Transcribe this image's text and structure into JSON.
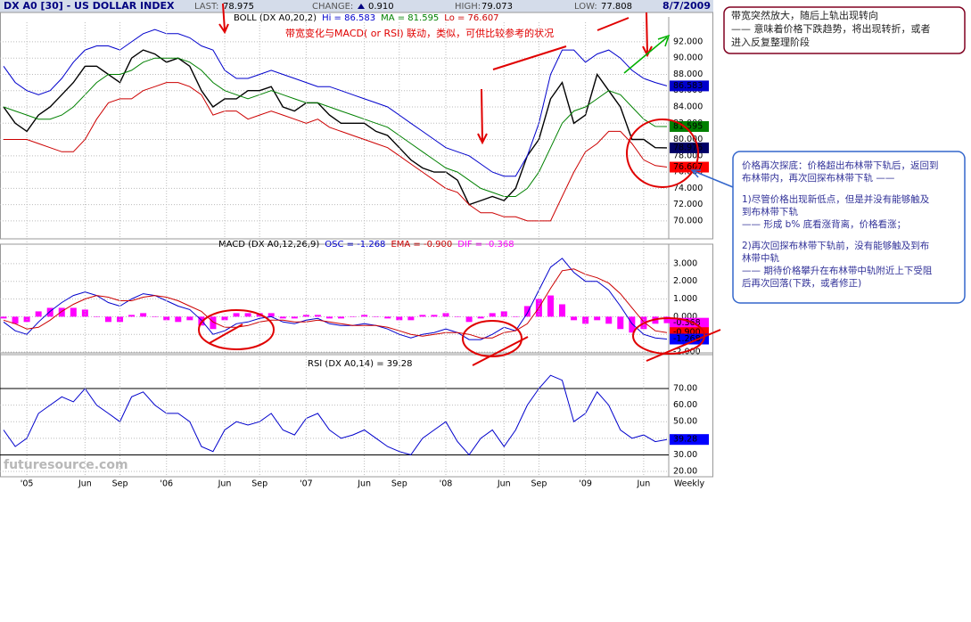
{
  "header": {
    "title": "DX A0 [30] - US DOLLAR INDEX",
    "last_label": "LAST:",
    "last": "78.975",
    "change_label": "CHANGE:",
    "change": "0.910",
    "high_label": "HIGH:",
    "high": "79.073",
    "low_label": "LOW:",
    "low": "77.808",
    "date": "8/7/2009"
  },
  "chart_data": [
    {
      "type": "line",
      "subtitle": [
        {
          "text": "BOLL (DX A0,20,2)",
          "color": "#000000"
        },
        {
          "text": "Hi = 86.583",
          "color": "#0000cc"
        },
        {
          "text": "MA = 81.595",
          "color": "#008000"
        },
        {
          "text": "Lo = 76.607",
          "color": "#cc0000"
        }
      ],
      "ylim": [
        67.8,
        94.4
      ],
      "grid": true,
      "yticks": [
        {
          "value": 70,
          "label": "70.000"
        },
        {
          "value": 72,
          "label": "72.000"
        },
        {
          "value": 74,
          "label": "74.000"
        },
        {
          "value": 76,
          "label": "76.000"
        },
        {
          "value": 78,
          "label": "78.000"
        },
        {
          "value": 80,
          "label": "80.000"
        },
        {
          "value": 82,
          "label": "82.000"
        },
        {
          "value": 84,
          "label": "84.000"
        },
        {
          "value": 86,
          "label": "86.000"
        },
        {
          "value": 88,
          "label": "88.000"
        },
        {
          "value": 90,
          "label": "90.000"
        },
        {
          "value": 92,
          "label": "92.000"
        }
      ],
      "series": [
        {
          "color": "#000000",
          "values": [
            84,
            82,
            81,
            83,
            84,
            85.5,
            87,
            89,
            89,
            88,
            87,
            90,
            91,
            90.5,
            89.5,
            90,
            89,
            86,
            84,
            85,
            85,
            86,
            86,
            86.5,
            84,
            83.5,
            84.5,
            84.5,
            83,
            82,
            82,
            82,
            81,
            80.5,
            79,
            77.5,
            76.5,
            76,
            76,
            75,
            72,
            72.5,
            73,
            72.5,
            74,
            78,
            80,
            85,
            87,
            82,
            83,
            88,
            86,
            84,
            80,
            80,
            79,
            78.975
          ]
        },
        {
          "color": "#0000cc",
          "values": [
            89,
            87,
            86,
            85.5,
            86,
            87.5,
            89.5,
            91,
            91.5,
            91.5,
            91,
            92,
            93,
            93.5,
            93,
            93,
            92.5,
            91.5,
            91,
            88.5,
            87.5,
            87.5,
            88,
            88.5,
            88,
            87.5,
            87,
            86.5,
            86.5,
            86,
            85.5,
            85,
            84.5,
            84,
            83,
            82,
            81,
            80,
            79,
            78.5,
            78,
            77,
            76,
            75.5,
            75.5,
            78,
            82,
            88,
            91,
            91,
            89.5,
            90.5,
            91,
            90,
            88.5,
            87.5,
            87,
            86.583
          ]
        },
        {
          "color": "#008000",
          "values": [
            84,
            83.5,
            83,
            82.5,
            82.5,
            83,
            84,
            85.5,
            87,
            88,
            88,
            88.5,
            89.5,
            90,
            90,
            90,
            89.5,
            88.5,
            87,
            86,
            85.5,
            85,
            85.5,
            86,
            85.5,
            85,
            84.5,
            84.5,
            84,
            83.5,
            83,
            82.5,
            82,
            81.5,
            80.5,
            79.5,
            78.5,
            77.5,
            76.5,
            76,
            75,
            74,
            73.5,
            73,
            73,
            74,
            76,
            79,
            82,
            83.5,
            84,
            85,
            86,
            85.5,
            84,
            82.5,
            81.6,
            81.595
          ]
        },
        {
          "color": "#cc0000",
          "values": [
            80,
            80,
            80,
            79.5,
            79,
            78.5,
            78.5,
            80,
            82.5,
            84.5,
            85,
            85,
            86,
            86.5,
            87,
            87,
            86.5,
            85.5,
            83,
            83.5,
            83.5,
            82.5,
            83,
            83.5,
            83,
            82.5,
            82,
            82.5,
            81.5,
            81,
            80.5,
            80,
            79.5,
            79,
            78,
            77,
            76,
            75,
            74,
            73.5,
            72,
            71,
            71,
            70.5,
            70.5,
            70,
            70,
            70,
            73,
            76,
            78.5,
            79.5,
            81,
            81,
            79.5,
            77.5,
            76.8,
            76.607
          ]
        }
      ],
      "tags": [
        {
          "value": 86.583,
          "color": "#0000cc"
        },
        {
          "value": 81.595,
          "color": "#008000"
        },
        {
          "value": 78.975,
          "color": "#000066"
        },
        {
          "value": 76.607,
          "color": "#ff0000"
        }
      ]
    },
    {
      "type": "line",
      "subtitle": [
        {
          "text": "MACD (DX A0,12,26,9)",
          "color": "#000000"
        },
        {
          "text": "OSC = -1.268",
          "color": "#0000cc"
        },
        {
          "text": "EMA = -0.900",
          "color": "#cc0000"
        },
        {
          "text": "DIF = -0.368",
          "color": "#ff00ff"
        }
      ],
      "ylim": [
        -2.15,
        3.8
      ],
      "grid": true,
      "yticks": [
        {
          "value": -2,
          "label": "-2.000"
        },
        {
          "value": -1,
          "label": "-1.000"
        },
        {
          "value": 0,
          "label": "0.000"
        },
        {
          "value": 1,
          "label": "1.000"
        },
        {
          "value": 2,
          "label": "2.000"
        },
        {
          "value": 3,
          "label": "3.000"
        }
      ],
      "series": [
        {
          "color": "#ff00ff",
          "as": "bars",
          "values": [
            -0.1,
            -0.4,
            -0.3,
            0.3,
            0.5,
            0.5,
            0.5,
            0.4,
            0,
            -0.3,
            -0.3,
            0.1,
            0.2,
            0,
            -0.2,
            -0.3,
            -0.2,
            -0.5,
            -0.7,
            -0.2,
            0.2,
            0.2,
            0.2,
            0.2,
            -0.1,
            -0.1,
            0.1,
            0.1,
            -0.1,
            -0.1,
            0,
            0.1,
            0,
            -0.1,
            -0.2,
            -0.2,
            0.1,
            0.1,
            0.2,
            0,
            -0.3,
            -0.1,
            0.2,
            0.3,
            0,
            0.6,
            1,
            1.2,
            0.7,
            -0.2,
            -0.4,
            -0.2,
            -0.4,
            -0.7,
            -0.9,
            -0.7,
            -0.4,
            -0.368
          ]
        },
        {
          "color": "#0000cc",
          "values": [
            -0.3,
            -0.8,
            -1,
            -0.3,
            0.3,
            0.8,
            1.2,
            1.4,
            1.2,
            0.8,
            0.6,
            1,
            1.3,
            1.2,
            0.9,
            0.6,
            0.4,
            -0.2,
            -1,
            -0.8,
            -0.4,
            -0.3,
            -0.1,
            0,
            -0.3,
            -0.4,
            -0.2,
            -0.1,
            -0.4,
            -0.5,
            -0.5,
            -0.4,
            -0.5,
            -0.7,
            -1,
            -1.2,
            -1,
            -0.9,
            -0.7,
            -0.9,
            -1.3,
            -1.3,
            -1,
            -0.6,
            -0.8,
            0.2,
            1.5,
            2.8,
            3.3,
            2.5,
            2,
            2,
            1.5,
            0.6,
            -0.4,
            -1,
            -1.2,
            -1.268
          ]
        },
        {
          "color": "#cc0000",
          "values": [
            -0.2,
            -0.4,
            -0.7,
            -0.6,
            -0.2,
            0.3,
            0.7,
            1,
            1.2,
            1.1,
            0.9,
            0.9,
            1.1,
            1.2,
            1.1,
            0.9,
            0.6,
            0.3,
            -0.3,
            -0.6,
            -0.6,
            -0.5,
            -0.3,
            -0.2,
            -0.2,
            -0.3,
            -0.3,
            -0.2,
            -0.3,
            -0.4,
            -0.5,
            -0.5,
            -0.5,
            -0.6,
            -0.8,
            -1,
            -1.1,
            -1,
            -0.9,
            -0.9,
            -1,
            -1.2,
            -1.2,
            -0.9,
            -0.8,
            -0.4,
            0.5,
            1.6,
            2.6,
            2.7,
            2.4,
            2.2,
            1.9,
            1.3,
            0.5,
            -0.3,
            -0.8,
            -0.9
          ]
        }
      ],
      "tags": [
        {
          "value": -0.368,
          "label": "-0.368",
          "color": "#ff00ff"
        },
        {
          "value": -0.9,
          "label": "-0.900",
          "color": "#ff0000"
        },
        {
          "value": -1.268,
          "label": "-1.268",
          "color": "#0000ff"
        }
      ]
    },
    {
      "type": "line",
      "subtitle": [
        {
          "text": "RSI (DX A0,14) = 39.28",
          "color": "#000000"
        }
      ],
      "ylim": [
        16.8,
        88.3
      ],
      "grid": true,
      "hlines": [
        70,
        30
      ],
      "yticks": [
        {
          "value": 20,
          "label": "20.00"
        },
        {
          "value": 30,
          "label": "30.00"
        },
        {
          "value": 40,
          "label": "40.00"
        },
        {
          "value": 50,
          "label": "50.00"
        },
        {
          "value": 60,
          "label": "60.00"
        },
        {
          "value": 70,
          "label": "70.00"
        }
      ],
      "categories": [
        null,
        null,
        "'05",
        null,
        null,
        null,
        null,
        "Jun",
        null,
        null,
        "Sep",
        null,
        null,
        null,
        "'06",
        null,
        null,
        null,
        null,
        "Jun",
        null,
        null,
        "Sep",
        null,
        null,
        null,
        "'07",
        null,
        null,
        null,
        null,
        "Jun",
        null,
        null,
        "Sep",
        null,
        null,
        null,
        "'08",
        null,
        null,
        null,
        null,
        "Jun",
        null,
        null,
        "Sep",
        null,
        null,
        null,
        "'09",
        null,
        null,
        null,
        null,
        "Jun",
        null,
        null
      ],
      "x_label": "Weekly",
      "watermark": "futuresource.com",
      "series": [
        {
          "color": "#0000cc",
          "values": [
            45,
            35,
            40,
            55,
            60,
            65,
            62,
            70,
            60,
            55,
            50,
            65,
            68,
            60,
            55,
            55,
            50,
            35,
            32,
            45,
            50,
            48,
            50,
            55,
            45,
            42,
            52,
            55,
            45,
            40,
            42,
            45,
            40,
            35,
            32,
            30,
            40,
            45,
            50,
            38,
            30,
            40,
            45,
            35,
            45,
            60,
            70,
            78,
            75,
            50,
            55,
            68,
            60,
            45,
            40,
            42,
            38,
            39.28
          ]
        }
      ],
      "tags": [
        {
          "value": 39.28,
          "color": "#0000ff"
        }
      ]
    }
  ],
  "annotations": {
    "chart_note": "带宽变化与MACD( or RSI) 联动，类似，可供比较参考的状况",
    "top_note": [
      "带宽突然放大，随后上轨出现转向",
      "—— 意味着价格下跌趋势，将出现转折，或者",
      "进入反复整理阶段"
    ],
    "side_note": [
      [
        "价格再次探底：价格超出布林带下轨后，返回到",
        "布林带内，再次回探布林带下轨 ——"
      ],
      [
        "1)尽管价格出现新低点，但是并没有能够触及",
        "到布林带下轨",
        "—— 形成 b% 底看涨背离，价格看涨；"
      ],
      [
        "2)再次回探布林带下轨前，没有能够触及到布",
        "林带中轨",
        "—— 期待价格攀升在布林带中轨附近上下受阻",
        "后再次回落(下跌，或者修正)"
      ]
    ]
  }
}
